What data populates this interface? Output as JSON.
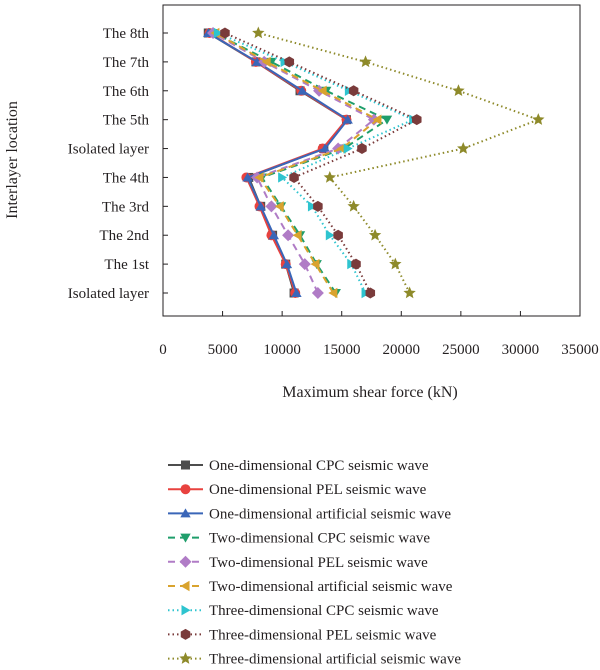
{
  "chart_data": {
    "type": "line",
    "xlabel": "Maximum shear force (kN)",
    "ylabel": "Interlayer location",
    "xlim": [
      0,
      35000
    ],
    "xticks": [
      0,
      5000,
      10000,
      15000,
      20000,
      25000,
      30000,
      35000
    ],
    "categories": [
      "Isolated layer",
      "The 1st",
      "The 2nd",
      "The 3rd",
      "The 4th",
      "Isolated layer",
      "The 5th",
      "The 6th",
      "The 7th",
      "The 8th"
    ],
    "grid": false,
    "legend_position": "bottom",
    "series": [
      {
        "name": "One-dimensional CPC seismic wave",
        "color": "#4d4d4d",
        "dash": "solid",
        "marker": "square",
        "values": [
          11000,
          10300,
          9200,
          8200,
          7200,
          13500,
          15400,
          11500,
          7800,
          3800
        ]
      },
      {
        "name": "One-dimensional PEL seismic wave",
        "color": "#e8423f",
        "dash": "solid",
        "marker": "circle",
        "values": [
          11100,
          10300,
          9100,
          8100,
          7000,
          13400,
          15400,
          11600,
          7800,
          3900
        ]
      },
      {
        "name": "One-dimensional artificial seismic wave",
        "color": "#3a66b8",
        "dash": "solid",
        "marker": "triangle-up",
        "values": [
          11200,
          10400,
          9300,
          8200,
          7100,
          13600,
          15500,
          11700,
          7900,
          3800
        ]
      },
      {
        "name": "Two-dimensional CPC seismic wave",
        "color": "#1f9e6b",
        "dash": "dashed",
        "marker": "triangle-down",
        "values": [
          14500,
          12900,
          11500,
          9900,
          8300,
          15200,
          18800,
          13700,
          9100,
          4300
        ]
      },
      {
        "name": "Two-dimensional PEL seismic wave",
        "color": "#b07cc6",
        "dash": "dashed",
        "marker": "diamond",
        "values": [
          13000,
          11900,
          10500,
          9100,
          7900,
          14700,
          17700,
          13100,
          8500,
          4200
        ]
      },
      {
        "name": "Two-dimensional artificial seismic wave",
        "color": "#d9a32e",
        "dash": "dashed",
        "marker": "triangle-left",
        "values": [
          14300,
          12800,
          11300,
          9800,
          8100,
          15000,
          18000,
          13400,
          8700,
          4400
        ]
      },
      {
        "name": "Three-dimensional CPC seismic wave",
        "color": "#2ec4cf",
        "dash": "dotted",
        "marker": "triangle-right",
        "values": [
          17000,
          15800,
          14000,
          12500,
          10000,
          15500,
          21000,
          15600,
          10200,
          4600
        ]
      },
      {
        "name": "Three-dimensional PEL seismic wave",
        "color": "#7a3b3b",
        "dash": "dotted",
        "marker": "hexagon",
        "values": [
          17400,
          16200,
          14700,
          13000,
          11000,
          16700,
          21300,
          16000,
          10600,
          5200
        ]
      },
      {
        "name": "Three-dimensional artificial seismic wave",
        "color": "#8e8a2a",
        "dash": "dotted",
        "marker": "star",
        "values": [
          20700,
          19500,
          17800,
          16000,
          14000,
          25200,
          31500,
          24800,
          17000,
          8000
        ]
      }
    ]
  }
}
